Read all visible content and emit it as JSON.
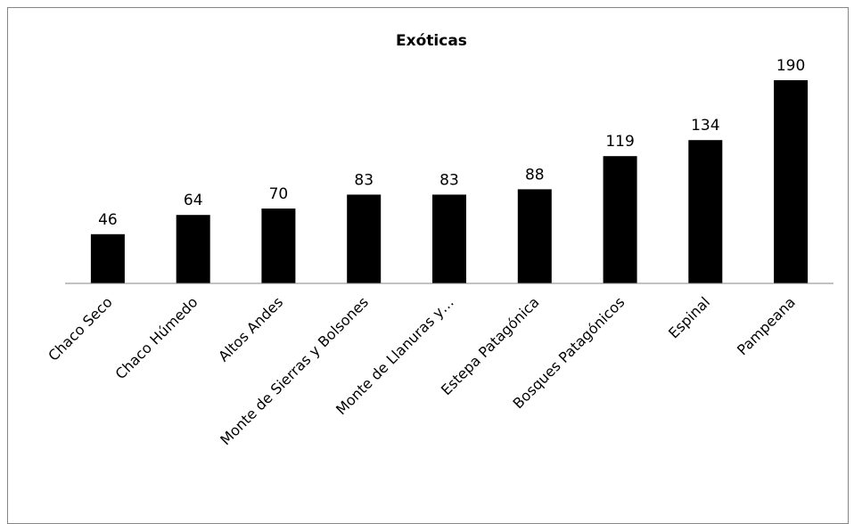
{
  "chart_data": {
    "type": "bar",
    "title": "Exóticas",
    "categories": [
      "Chaco Seco",
      "Chaco Húmedo",
      "Altos Andes",
      "Monte de Sierras y Bolsones",
      "Monte de Llanuras y…",
      "Estepa Patagónica",
      "Bosques Patagónicos",
      "Espinal",
      "Pampeana"
    ],
    "values": [
      46,
      64,
      70,
      83,
      83,
      88,
      119,
      134,
      190
    ],
    "ylim": [
      0,
      200
    ],
    "grid": false,
    "legend": "none",
    "colors": {
      "bar": "#000000",
      "axis": "#868686",
      "frame": "#868686"
    }
  }
}
